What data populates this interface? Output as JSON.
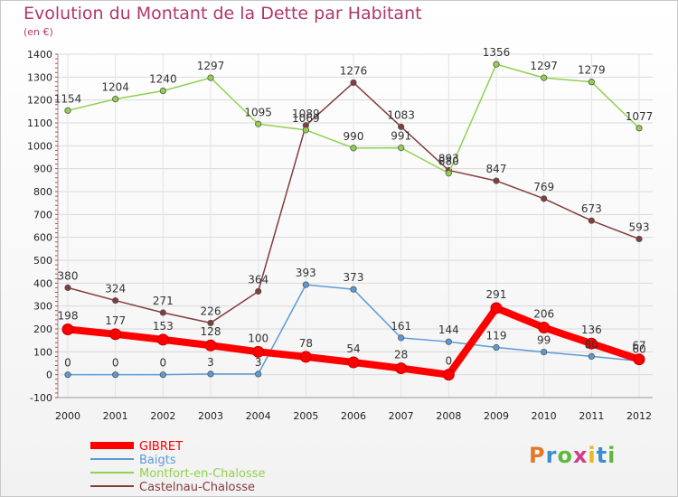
{
  "header": {
    "title": "Evolution du Montant de la Dette par Habitant",
    "subtitle": "(en €)"
  },
  "logo": {
    "text": "Proxiti",
    "colors": [
      "#e07a2a",
      "#3a8ed0",
      "#5fb83a",
      "#d23c8c",
      "#e8b820",
      "#3a8ed0",
      "#5fb83a"
    ]
  },
  "chart_data": {
    "type": "line",
    "x": [
      "2000",
      "2001",
      "2002",
      "2003",
      "2004",
      "2005",
      "2006",
      "2007",
      "2008",
      "2009",
      "2010",
      "2011",
      "2012"
    ],
    "ylim": [
      -100,
      1400
    ],
    "yticks": [
      -100,
      0,
      100,
      200,
      300,
      400,
      500,
      600,
      700,
      800,
      900,
      1000,
      1100,
      1200,
      1300,
      1400
    ],
    "grid": true,
    "legend_position": "bottom-left",
    "series": [
      {
        "name": "GIBRET",
        "color": "#ff0000",
        "values": [
          198,
          177,
          153,
          128,
          100,
          78,
          54,
          28,
          0,
          291,
          206,
          136,
          67
        ]
      },
      {
        "name": "Baigts",
        "color": "#5b9bd5",
        "values": [
          0,
          0,
          0,
          3,
          3,
          393,
          373,
          161,
          144,
          119,
          99,
          80,
          60
        ]
      },
      {
        "name": "Montfort-en-Chalosse",
        "color": "#92d050",
        "values": [
          1154,
          1204,
          1240,
          1297,
          1095,
          1069,
          990,
          991,
          880,
          1356,
          1297,
          1279,
          1077
        ]
      },
      {
        "name": "Castelnau-Chalosse",
        "color": "#843c3c",
        "values": [
          380,
          324,
          271,
          226,
          364,
          1089,
          1276,
          1083,
          893,
          847,
          769,
          673,
          593
        ]
      }
    ]
  }
}
